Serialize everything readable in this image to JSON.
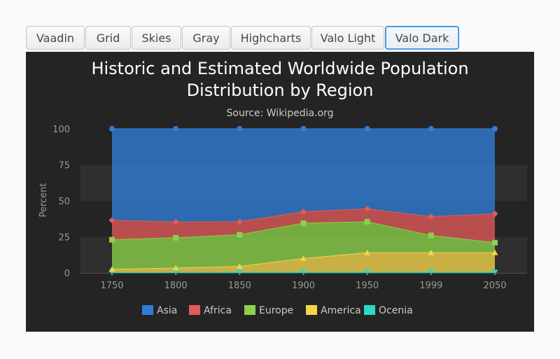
{
  "tabs": [
    {
      "label": "Vaadin",
      "active": false
    },
    {
      "label": "Grid",
      "active": false
    },
    {
      "label": "Skies",
      "active": false
    },
    {
      "label": "Gray",
      "active": false
    },
    {
      "label": "Highcharts",
      "active": false
    },
    {
      "label": "Valo Light",
      "active": false
    },
    {
      "label": "Valo Dark",
      "active": true
    }
  ],
  "chart_data": {
    "type": "area",
    "stacking": "percent",
    "title": "Historic and Estimated Worldwide Population Distribution by Region",
    "subtitle": "Source: Wikipedia.org",
    "ylabel": "Percent",
    "xlabel": "",
    "categories": [
      "1750",
      "1800",
      "1850",
      "1900",
      "1950",
      "1999",
      "2050"
    ],
    "yticks": [
      "0",
      "25",
      "50",
      "75",
      "100"
    ],
    "ylim": [
      0,
      100
    ],
    "legend_position": "bottom",
    "series": [
      {
        "name": "Asia",
        "color": "#2f7ed8",
        "marker": "circle",
        "values": [
          63.5,
          64.6,
          64.5,
          57.5,
          55.5,
          61,
          59
        ]
      },
      {
        "name": "Africa",
        "color": "#e25a5a",
        "marker": "diamond",
        "values": [
          13.5,
          11,
          9,
          8,
          9,
          13,
          20
        ]
      },
      {
        "name": "Europe",
        "color": "#8bd24a",
        "marker": "square",
        "values": [
          20.5,
          21,
          22,
          24.5,
          21.5,
          12,
          7
        ]
      },
      {
        "name": "America",
        "color": "#f3d54a",
        "marker": "triangle",
        "values": [
          2.2,
          3,
          4,
          9.5,
          13.5,
          13.5,
          13.5
        ]
      },
      {
        "name": "Ocenia",
        "color": "#2ad9c8",
        "marker": "triangle-down",
        "values": [
          0.3,
          0.4,
          0.5,
          0.5,
          0.5,
          0.5,
          0.5
        ]
      }
    ]
  }
}
